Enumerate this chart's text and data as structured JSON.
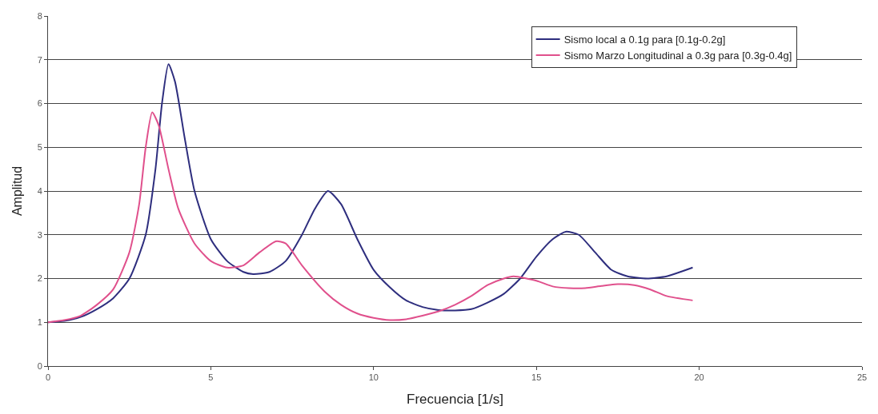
{
  "chart_data": {
    "type": "line",
    "xlabel": "Frecuencia [1/s]",
    "ylabel": "Amplitud",
    "xlim": [
      0,
      25
    ],
    "xticks": [
      0,
      5,
      10,
      15,
      20,
      25
    ],
    "ylim": [
      0,
      8
    ],
    "yticks": [
      0,
      1,
      2,
      3,
      4,
      5,
      6,
      7,
      8
    ],
    "grid": "y",
    "legend": "top right",
    "marker": "none",
    "line_style": "solid",
    "series": [
      {
        "name": "Sismo local a 0.1g para [0.1g-0.2g]",
        "color": "#2e2e7e",
        "x": [
          0,
          0.5,
          1,
          1.5,
          2,
          2.5,
          3,
          3.3,
          3.5,
          3.7,
          3.9,
          4.2,
          4.5,
          5,
          5.5,
          6,
          6.3,
          6.8,
          7.3,
          7.8,
          8.2,
          8.6,
          9,
          9.5,
          10,
          10.5,
          11,
          11.5,
          12,
          12.5,
          13,
          13.5,
          14,
          14.5,
          15,
          15.5,
          15.9,
          16.3,
          16.8,
          17.3,
          17.8,
          18.4,
          19,
          19.8
        ],
        "values": [
          1.0,
          1.03,
          1.12,
          1.3,
          1.55,
          2.0,
          3.0,
          4.5,
          6.0,
          6.9,
          6.5,
          5.2,
          4.0,
          2.9,
          2.4,
          2.15,
          2.1,
          2.15,
          2.4,
          3.0,
          3.6,
          4.0,
          3.7,
          2.9,
          2.2,
          1.8,
          1.5,
          1.35,
          1.28,
          1.27,
          1.3,
          1.45,
          1.65,
          2.0,
          2.5,
          2.9,
          3.07,
          3.0,
          2.6,
          2.2,
          2.05,
          2.0,
          2.05,
          2.25
        ]
      },
      {
        "name": "Sismo Marzo Longitudinal a 0.3g para [0.3g-0.4g]",
        "color": "#e0508c",
        "x": [
          0,
          0.5,
          1,
          1.5,
          2,
          2.5,
          2.8,
          3,
          3.2,
          3.4,
          3.7,
          4,
          4.5,
          5,
          5.5,
          6,
          6.5,
          7,
          7.3,
          7.8,
          8.5,
          9,
          9.5,
          10,
          10.5,
          11,
          11.5,
          12,
          12.5,
          13,
          13.5,
          14,
          14.3,
          15,
          15.5,
          16,
          16.5,
          17,
          17.5,
          18,
          18.5,
          19,
          19.8
        ],
        "values": [
          1.0,
          1.05,
          1.15,
          1.4,
          1.75,
          2.6,
          3.7,
          5.0,
          5.8,
          5.5,
          4.5,
          3.6,
          2.8,
          2.4,
          2.25,
          2.3,
          2.6,
          2.85,
          2.8,
          2.3,
          1.7,
          1.4,
          1.2,
          1.1,
          1.05,
          1.07,
          1.15,
          1.25,
          1.4,
          1.6,
          1.85,
          2.0,
          2.05,
          1.95,
          1.82,
          1.78,
          1.78,
          1.83,
          1.87,
          1.85,
          1.75,
          1.6,
          1.5
        ]
      }
    ]
  }
}
